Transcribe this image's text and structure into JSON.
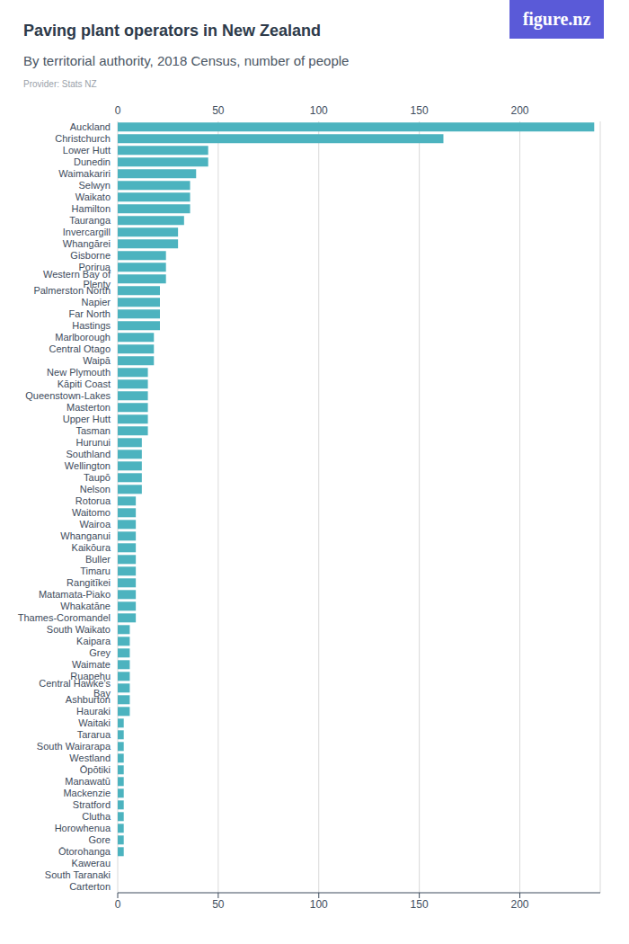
{
  "chart_data": {
    "type": "bar",
    "orientation": "horizontal",
    "title": "Paving plant operators in New Zealand",
    "subtitle": "By territorial authority, 2018 Census, number of people",
    "caption": "Provider: Stats NZ",
    "logo": "figure.nz",
    "categories": [
      "Auckland",
      "Christchurch",
      "Lower Hutt",
      "Dunedin",
      "Waimakariri",
      "Selwyn",
      "Waikato",
      "Hamilton",
      "Tauranga",
      "Invercargill",
      "Whangārei",
      "Gisborne",
      "Porirua",
      "Western Bay of Plenty",
      "Palmerston North",
      "Napier",
      "Far North",
      "Hastings",
      "Marlborough",
      "Central Otago",
      "Waipā",
      "New Plymouth",
      "Kāpiti Coast",
      "Queenstown-Lakes",
      "Masterton",
      "Upper Hutt",
      "Tasman",
      "Hurunui",
      "Southland",
      "Wellington",
      "Taupō",
      "Nelson",
      "Rotorua",
      "Waitomo",
      "Wairoa",
      "Whanganui",
      "Kaikōura",
      "Buller",
      "Timaru",
      "Rangitīkei",
      "Matamata-Piako",
      "Whakatāne",
      "Thames-Coromandel",
      "South Waikato",
      "Kaipara",
      "Grey",
      "Waimate",
      "Ruapehu",
      "Central Hawke's Bay",
      "Ashburton",
      "Hauraki",
      "Waitaki",
      "Tararua",
      "South Wairarapa",
      "Westland",
      "Ōpōtiki",
      "Manawatū",
      "Mackenzie",
      "Stratford",
      "Clutha",
      "Horowhenua",
      "Gore",
      "Ōtorohanga",
      "Kawerau",
      "South Taranaki",
      "Carterton"
    ],
    "values": [
      237,
      162,
      45,
      45,
      39,
      36,
      36,
      36,
      33,
      30,
      30,
      24,
      24,
      24,
      21,
      21,
      21,
      21,
      18,
      18,
      18,
      15,
      15,
      15,
      15,
      15,
      15,
      12,
      12,
      12,
      12,
      12,
      9,
      9,
      9,
      9,
      9,
      9,
      9,
      9,
      9,
      9,
      9,
      6,
      6,
      6,
      6,
      6,
      6,
      6,
      6,
      3,
      3,
      3,
      3,
      3,
      3,
      3,
      3,
      3,
      3,
      3,
      3,
      0,
      0,
      0
    ],
    "color": "#4cb3bf",
    "xlim": [
      0,
      240
    ],
    "xticks": [
      0,
      50,
      100,
      150,
      200
    ],
    "grid": true
  }
}
